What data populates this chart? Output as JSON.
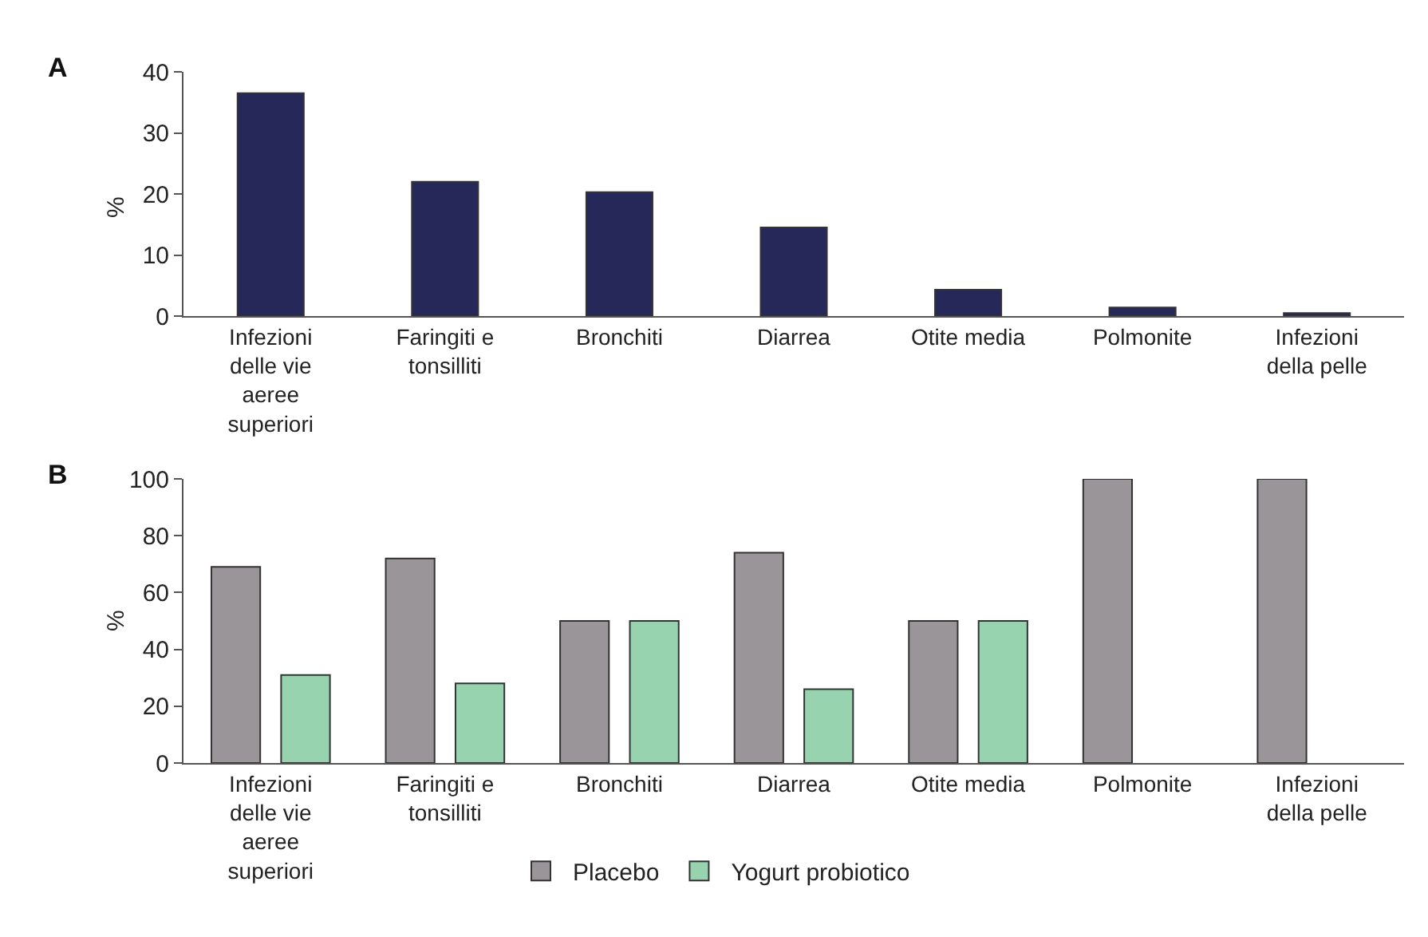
{
  "chart_data": [
    {
      "type": "bar",
      "title": "A",
      "ylabel": "%",
      "categories": [
        "Infezioni delle vie aeree superiori",
        "Faringiti e tonsilliti",
        "Bronchiti",
        "Diarrea",
        "Otite media",
        "Polmonite",
        "Infezioni della pelle"
      ],
      "series": [
        {
          "color": "#27285a",
          "values": [
            36.5,
            22,
            20.3,
            14.5,
            4.3,
            1.4,
            0.5
          ]
        }
      ],
      "ylim": [
        0,
        40
      ],
      "yticks": [
        0,
        10,
        20,
        30,
        40
      ],
      "legend": false
    },
    {
      "type": "bar",
      "title": "B",
      "ylabel": "%",
      "categories": [
        "Infezioni delle vie aeree superiori",
        "Faringiti e tonsilliti",
        "Bronchiti",
        "Diarrea",
        "Otite media",
        "Polmonite",
        "Infezioni della pelle"
      ],
      "series": [
        {
          "name": "Placebo",
          "color": "#9a9598",
          "values": [
            69,
            72,
            50,
            74,
            50,
            100,
            100
          ]
        },
        {
          "name": "Yogurt probiotico",
          "color": "#96d3ae",
          "values": [
            31,
            28,
            50,
            26,
            50,
            null,
            null
          ]
        }
      ],
      "ylim": [
        0,
        100
      ],
      "yticks": [
        0,
        20,
        40,
        60,
        80,
        100
      ],
      "legend": "bottom"
    }
  ]
}
